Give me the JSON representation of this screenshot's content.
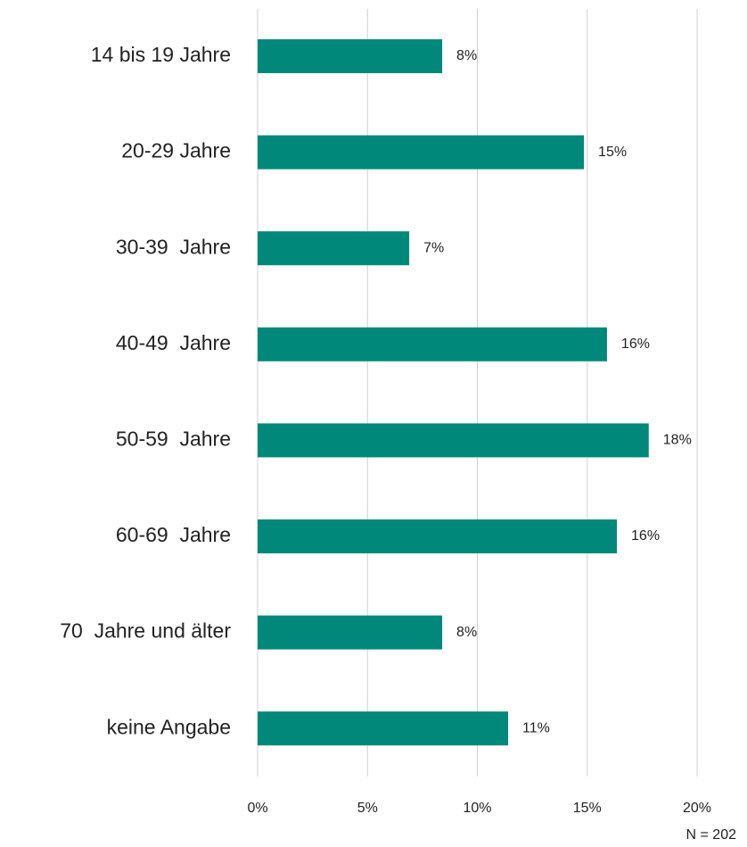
{
  "chart_data": {
    "type": "barh",
    "categories": [
      "14 bis 19 Jahre",
      "20-29 Jahre",
      "30-39  Jahre",
      "40-49  Jahre",
      "50-59  Jahre",
      "60-69  Jahre",
      "70  Jahre und älter",
      "keine Angabe"
    ],
    "values": [
      8.4,
      14.85,
      6.9,
      15.9,
      17.8,
      16.35,
      8.4,
      11.4
    ],
    "value_labels": [
      "8%",
      "15%",
      "7%",
      "16%",
      "18%",
      "16%",
      "8%",
      "11%"
    ],
    "color": "#00897b",
    "xlim": [
      0,
      20
    ],
    "xticks": [
      {
        "value": 0,
        "label": "0%"
      },
      {
        "value": 5,
        "label": "5%"
      },
      {
        "value": 10,
        "label": "10%"
      },
      {
        "value": 15,
        "label": "15%"
      },
      {
        "value": 20,
        "label": "20%"
      }
    ],
    "grid": true,
    "annotation": "N = 202"
  }
}
